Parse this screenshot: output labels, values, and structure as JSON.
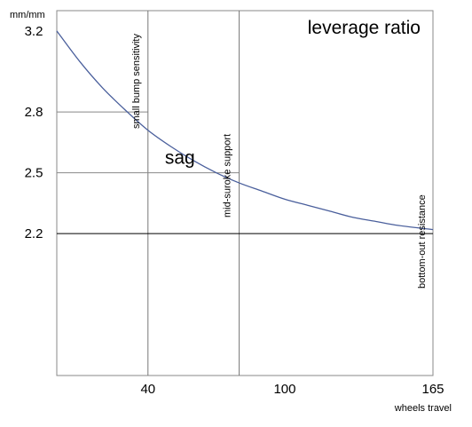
{
  "chart_data": {
    "type": "line",
    "title": "leverage ratio",
    "ylabel": "mm/mm",
    "xlabel": "wheels travel",
    "xlim": [
      0,
      165
    ],
    "ylim": [
      1.5,
      3.3
    ],
    "x_ticks": [
      40,
      100,
      165
    ],
    "y_ticks": [
      3.2,
      2.8,
      2.5,
      2.2
    ],
    "grid": false,
    "series": [
      {
        "color": "#4a5f9c",
        "x": [
          0,
          10,
          20,
          30,
          40,
          50,
          60,
          70,
          80,
          90,
          100,
          110,
          120,
          130,
          140,
          150,
          165
        ],
        "y": [
          3.2,
          3.05,
          2.92,
          2.81,
          2.71,
          2.63,
          2.56,
          2.5,
          2.45,
          2.41,
          2.37,
          2.34,
          2.31,
          2.28,
          2.26,
          2.24,
          2.22
        ]
      }
    ],
    "reference_lines": {
      "horizontal": [
        {
          "y": 2.2,
          "color": "#000000"
        },
        {
          "y": 2.8,
          "x_end": 40,
          "color": "#888888"
        },
        {
          "y": 2.5,
          "x_end": 80,
          "color": "#888888"
        }
      ],
      "vertical": [
        {
          "x": 40,
          "color": "#777777"
        },
        {
          "x": 80,
          "color": "#777777"
        }
      ]
    },
    "annotations": [
      {
        "text": "small bump sensitivity",
        "x": 40
      },
      {
        "text": "mid-suroke support",
        "x": 80
      },
      {
        "text": "bottom-out resistance",
        "x": 165
      },
      {
        "text": "sag",
        "x": 54,
        "y": 2.58
      }
    ]
  }
}
